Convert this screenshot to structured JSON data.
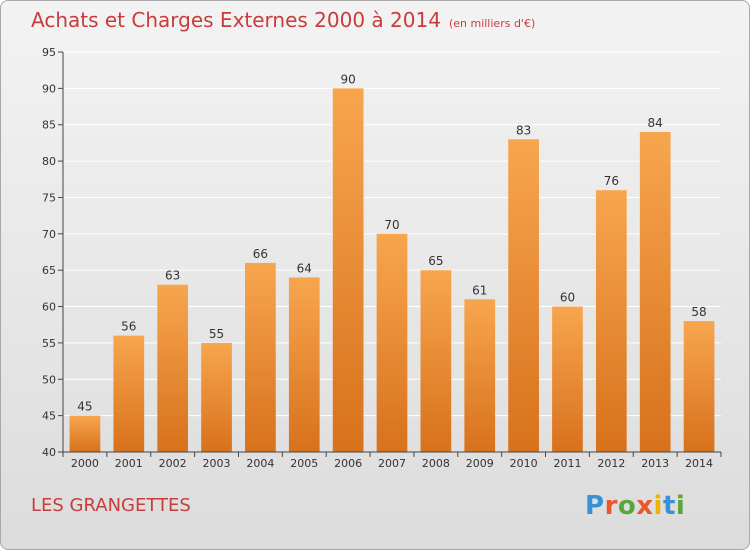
{
  "title": "Achats et Charges Externes 2000 à 2014",
  "subtitle": "(en milliers d'€)",
  "commune": "LES GRANGETTES",
  "logo": {
    "text": "Proxiti",
    "letter_colors": [
      "#3a8fd9",
      "#e8582a",
      "#5aa63a",
      "#e8582a",
      "#f0b400",
      "#3a8fd9",
      "#5aa63a"
    ]
  },
  "colors": {
    "title": "#c83c3c",
    "bar_top": "#f7a64e",
    "bar_bottom": "#d8711c",
    "axis": "#444444",
    "grid": "#ffffff"
  },
  "chart_data": {
    "type": "bar",
    "title": "Achats et Charges Externes 2000 à 2014",
    "categories": [
      "2000",
      "2001",
      "2002",
      "2003",
      "2004",
      "2005",
      "2006",
      "2007",
      "2008",
      "2009",
      "2010",
      "2011",
      "2012",
      "2013",
      "2014"
    ],
    "values": [
      45,
      56,
      63,
      55,
      66,
      64,
      90,
      70,
      65,
      61,
      83,
      60,
      76,
      84,
      58
    ],
    "ylim": [
      40,
      95
    ],
    "yticks": [
      40,
      45,
      50,
      55,
      60,
      65,
      70,
      75,
      80,
      85,
      90,
      95
    ],
    "grid": true,
    "data_labels": true
  }
}
